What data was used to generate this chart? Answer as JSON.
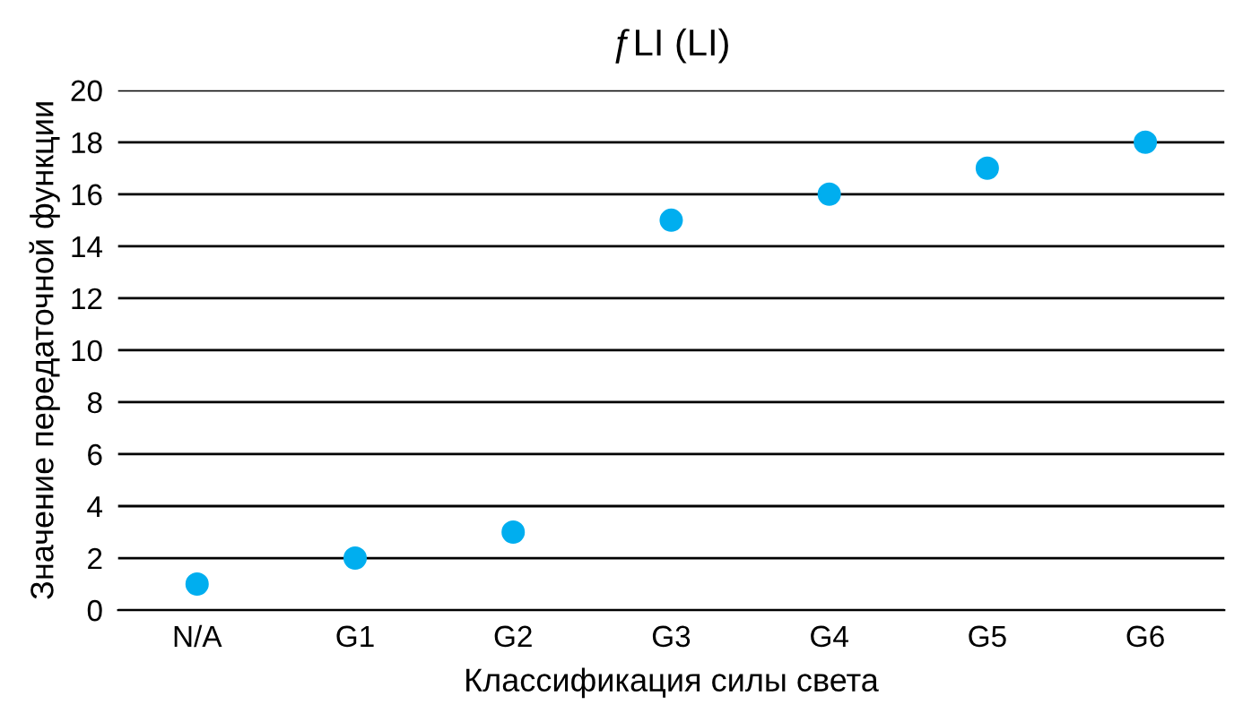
{
  "chart_data": {
    "type": "scatter",
    "title": "ƒLI (LI)",
    "xlabel": "Классификация силы света",
    "ylabel": "Значение передаточной функции",
    "categories": [
      "N/A",
      "G1",
      "G2",
      "G3",
      "G4",
      "G5",
      "G6"
    ],
    "series": [
      {
        "color": "#00aeef",
        "values": [
          1,
          2,
          3,
          15,
          16,
          17,
          18
        ]
      }
    ],
    "ylim": [
      0,
      20
    ],
    "yticks": [
      0,
      2,
      4,
      6,
      8,
      10,
      12,
      14,
      16,
      18,
      20
    ],
    "grid": "y",
    "marker": "circle"
  }
}
